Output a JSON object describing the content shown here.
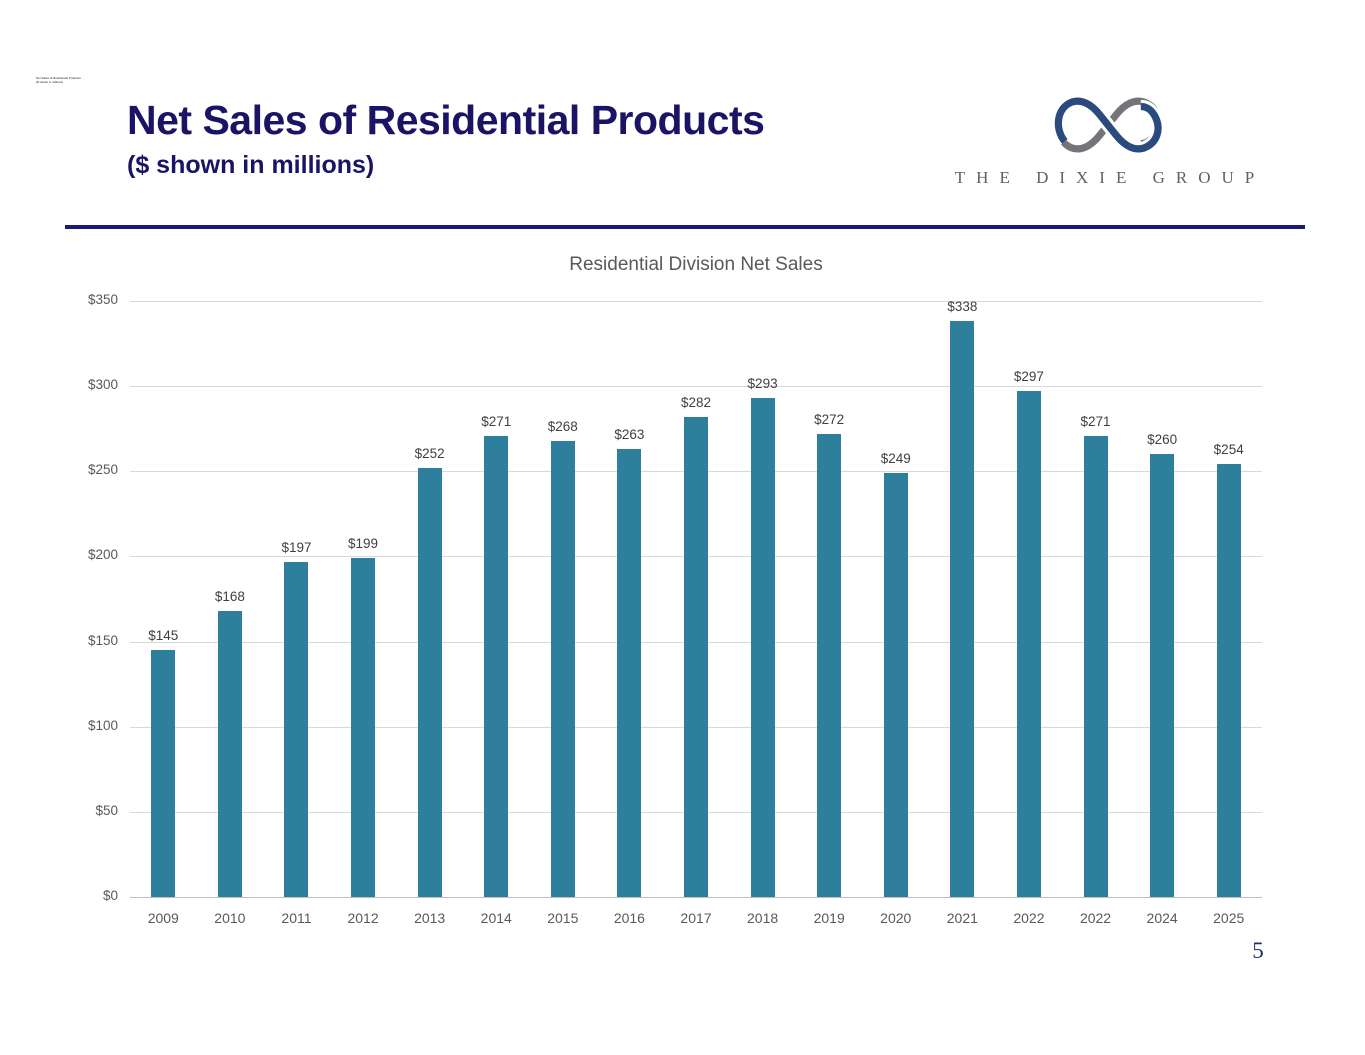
{
  "slide": {
    "corner_note_line1": "Net Sales of Residential Products",
    "corner_note_line2": "($ shown in millions)",
    "title": "Net Sales of Residential Products",
    "subtitle": "($ shown in millions)",
    "page_number": "5"
  },
  "logo": {
    "text": "THE DIXIE GROUP",
    "blue": "#2b4a7d",
    "gray": "#737578"
  },
  "chart_data": {
    "type": "bar",
    "title": "Residential Division Net Sales",
    "categories": [
      "2009",
      "2010",
      "2011",
      "2012",
      "2013",
      "2014",
      "2015",
      "2016",
      "2017",
      "2018",
      "2019",
      "2020",
      "2021",
      "2022",
      "2022",
      "2024",
      "2025"
    ],
    "values": [
      145,
      168,
      197,
      199,
      252,
      271,
      268,
      263,
      282,
      293,
      272,
      249,
      338,
      297,
      271,
      260,
      254
    ],
    "value_labels": [
      "$145",
      "$168",
      "$197",
      "$199",
      "$252",
      "$271",
      "$268",
      "$263",
      "$282",
      "$293",
      "$272",
      "$249",
      "$338",
      "$297",
      "$271",
      "$260",
      "$254"
    ],
    "xlabel": "",
    "ylabel": "",
    "ylim": [
      0,
      350
    ],
    "ytick_interval": 50,
    "ytick_labels": [
      "$0",
      "$50",
      "$100",
      "$150",
      "$200",
      "$250",
      "$300",
      "$350"
    ],
    "grid": true,
    "legend": false,
    "bar_color": "#2e7f9b"
  }
}
